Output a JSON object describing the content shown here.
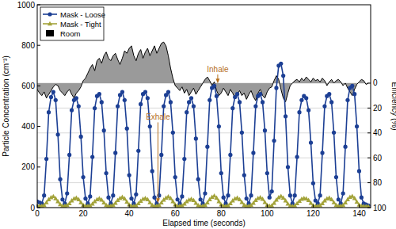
{
  "chart_data": {
    "type": "line",
    "x_label": "Elapsed time (seconds)",
    "y_label": "Particle Concentration (cm⁻³)",
    "y2_label": "Efficiency (%)",
    "xlim": [
      0,
      145
    ],
    "xticks": [
      0,
      20,
      40,
      60,
      80,
      100,
      120,
      140
    ],
    "ylim": [
      0,
      1000
    ],
    "yticks": [
      0,
      200,
      400,
      600,
      800,
      1000
    ],
    "y2lim": [
      100,
      -63
    ],
    "y2ticks": [
      0,
      20,
      40,
      60,
      80,
      100
    ],
    "grid": true,
    "legend": "upper left",
    "x": [
      0,
      1,
      2,
      3,
      4,
      5,
      6,
      7,
      8,
      9,
      10,
      11,
      12,
      13,
      14,
      15,
      16,
      17,
      18,
      19,
      20,
      21,
      22,
      23,
      24,
      25,
      26,
      27,
      28,
      29,
      30,
      31,
      32,
      33,
      34,
      35,
      36,
      37,
      38,
      39,
      40,
      41,
      42,
      43,
      44,
      45,
      46,
      47,
      48,
      49,
      50,
      51,
      52,
      53,
      54,
      55,
      56,
      57,
      58,
      59,
      60,
      61,
      62,
      63,
      64,
      65,
      66,
      67,
      68,
      69,
      70,
      71,
      72,
      73,
      74,
      75,
      76,
      77,
      78,
      79,
      80,
      81,
      82,
      83,
      84,
      85,
      86,
      87,
      88,
      89,
      90,
      91,
      92,
      93,
      94,
      95,
      96,
      97,
      98,
      99,
      100,
      101,
      102,
      103,
      104,
      105,
      106,
      107,
      108,
      109,
      110,
      111,
      112,
      113,
      114,
      115,
      116,
      117,
      118,
      119,
      120,
      121,
      122,
      123,
      124,
      125,
      126,
      127,
      128,
      129,
      130,
      131,
      132,
      133,
      134,
      135,
      136,
      137,
      138,
      139,
      140,
      141,
      142,
      143,
      144
    ],
    "series": [
      {
        "name": "Mask - Loose",
        "color": "#1c3f94",
        "type": "line",
        "marker": "circle",
        "values": [
          30,
          25,
          20,
          60,
          240,
          470,
          545,
          570,
          530,
          360,
          140,
          40,
          20,
          70,
          260,
          480,
          530,
          540,
          500,
          350,
          150,
          45,
          20,
          55,
          250,
          490,
          550,
          560,
          520,
          380,
          170,
          50,
          20,
          60,
          270,
          500,
          555,
          570,
          530,
          390,
          160,
          45,
          20,
          65,
          280,
          510,
          560,
          570,
          540,
          400,
          180,
          50,
          20,
          60,
          260,
          500,
          555,
          570,
          520,
          370,
          150,
          40,
          20,
          55,
          240,
          470,
          520,
          540,
          500,
          340,
          140,
          40,
          20,
          70,
          300,
          530,
          590,
          600,
          550,
          400,
          170,
          50,
          20,
          60,
          260,
          490,
          545,
          560,
          520,
          370,
          160,
          45,
          20,
          60,
          270,
          500,
          550,
          560,
          520,
          380,
          170,
          50,
          80,
          330,
          590,
          700,
          710,
          650,
          450,
          200,
          60,
          20,
          60,
          250,
          470,
          530,
          550,
          540,
          480,
          320,
          120,
          35,
          20,
          60,
          270,
          500,
          550,
          560,
          520,
          370,
          150,
          40,
          20,
          70,
          300,
          530,
          590,
          600,
          560,
          400,
          180,
          50,
          20,
          15,
          10
        ]
      },
      {
        "name": "Mask - Tight",
        "color": "#a3a33a",
        "type": "line",
        "marker": "triangle",
        "values": [
          10,
          8,
          8,
          12,
          25,
          40,
          50,
          55,
          45,
          30,
          15,
          8,
          8,
          12,
          20,
          34,
          44,
          48,
          40,
          25,
          12,
          8,
          8,
          10,
          18,
          30,
          40,
          45,
          38,
          24,
          12,
          8,
          8,
          12,
          22,
          36,
          46,
          52,
          44,
          28,
          14,
          8,
          7,
          10,
          20,
          32,
          42,
          46,
          40,
          25,
          12,
          7,
          8,
          12,
          24,
          38,
          48,
          54,
          46,
          30,
          14,
          8,
          8,
          10,
          18,
          30,
          38,
          42,
          36,
          22,
          11,
          7,
          8,
          12,
          24,
          40,
          52,
          58,
          48,
          30,
          14,
          8,
          7,
          10,
          20,
          34,
          44,
          48,
          40,
          26,
          12,
          8,
          8,
          12,
          22,
          36,
          46,
          50,
          42,
          26,
          12,
          8,
          10,
          22,
          38,
          50,
          56,
          48,
          34,
          18,
          9,
          7,
          10,
          20,
          32,
          42,
          46,
          44,
          36,
          22,
          10,
          7,
          8,
          11,
          20,
          34,
          44,
          48,
          40,
          25,
          12,
          8,
          8,
          12,
          24,
          40,
          52,
          56,
          46,
          28,
          13,
          8,
          7,
          6,
          6
        ]
      },
      {
        "name": "Room",
        "color": "#000000",
        "type": "area",
        "axis": "y2",
        "values": [
          5,
          8,
          10,
          7,
          12,
          9,
          6,
          3,
          1,
          2,
          6,
          8,
          10,
          7,
          5,
          9,
          12,
          8,
          6,
          3,
          -2,
          -4,
          -8,
          -12,
          -15,
          -10,
          -18,
          -20,
          -16,
          -22,
          -25,
          -20,
          -18,
          -22,
          -24,
          -19,
          -15,
          -20,
          -26,
          -24,
          -28,
          -30,
          -22,
          -18,
          -24,
          -27,
          -20,
          -25,
          -28,
          -22,
          -26,
          -30,
          -24,
          -28,
          -32,
          -33,
          -30,
          -22,
          -12,
          -4,
          2,
          4,
          6,
          3,
          8,
          5,
          10,
          7,
          4,
          9,
          6,
          3,
          0,
          -3,
          -5,
          -2,
          2,
          -1,
          6,
          10,
          8,
          4,
          7,
          10,
          5,
          8,
          12,
          9,
          6,
          10,
          8,
          13,
          9,
          6,
          11,
          14,
          8,
          5,
          10,
          12,
          7,
          4,
          3,
          -2,
          -6,
          -3,
          5,
          12,
          15,
          8,
          2,
          0,
          -2,
          -3,
          -1,
          -4,
          -2,
          -5,
          -3,
          -1,
          -4,
          -2,
          -3,
          -1,
          -4,
          -2,
          2,
          -1,
          -3,
          0,
          -2,
          -3,
          -1,
          2,
          0,
          4,
          7,
          10,
          5,
          1,
          -1,
          -3,
          -2,
          1,
          0
        ]
      }
    ],
    "annotations": [
      {
        "text": "Inhale",
        "x": 78.5,
        "y": 612,
        "label_y": 668,
        "color": "#b5701f"
      },
      {
        "text": "Exhale",
        "x": 52.5,
        "y": 22,
        "label_y": 432,
        "color": "#b5701f"
      }
    ]
  }
}
